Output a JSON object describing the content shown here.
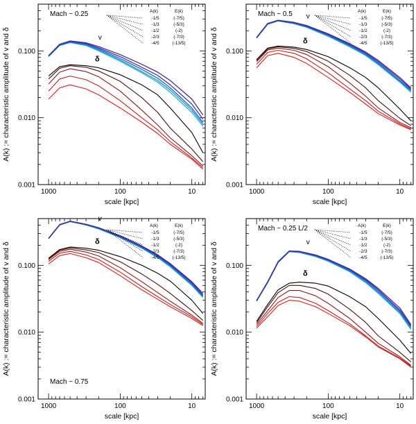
{
  "figure": {
    "ylabel": "A(k) := characteristic amplitude of v and δ",
    "xlabel": "scale [kpc]",
    "legend_header": [
      "A(k)",
      "E(k)"
    ],
    "legend_rows": [
      [
        "-1/5",
        "(-7/5)"
      ],
      [
        "-1/3",
        "(-5/3)"
      ],
      [
        "-1/2",
        "(-2)"
      ],
      [
        "-2/3",
        "(-7/3)"
      ],
      [
        "-4/5",
        "(-13/5)"
      ]
    ],
    "colors": {
      "v_series": [
        "#1fb3e0",
        "#1a8fd6",
        "#2b5fc4",
        "#3a3aa8",
        "#4b2a8a"
      ],
      "delta_series": [
        "#e11b1b",
        "#c01f1f",
        "#8a1a1a",
        "#4a1010",
        "#000000"
      ]
    }
  },
  "chart_data": [
    {
      "type": "line",
      "panel": "top-left",
      "annotation": "Mach ~ 0.25",
      "annotation_position": "top-left",
      "xscale": "log",
      "xreversed": true,
      "yscale": "log",
      "xlim": [
        1400,
        6.5
      ],
      "ylim": [
        0.001,
        0.5
      ],
      "xticks": [
        1000,
        100,
        10
      ],
      "yticks": [
        0.001,
        0.01,
        0.1
      ],
      "x": [
        1000,
        700,
        500,
        300,
        200,
        100,
        50,
        30,
        20,
        10,
        7
      ],
      "series_labels": {
        "v": "v",
        "delta": "δ"
      },
      "series": [
        {
          "name": "v (A=-1/5)",
          "values": [
            0.082,
            0.12,
            0.133,
            0.12,
            0.1,
            0.07,
            0.047,
            0.034,
            0.024,
            0.012,
            0.0075
          ]
        },
        {
          "name": "v (A=-1/3)",
          "values": [
            0.083,
            0.122,
            0.135,
            0.123,
            0.103,
            0.073,
            0.049,
            0.036,
            0.026,
            0.013,
            0.008
          ]
        },
        {
          "name": "v (A=-1/2)",
          "values": [
            0.083,
            0.123,
            0.137,
            0.126,
            0.107,
            0.077,
            0.053,
            0.039,
            0.028,
            0.014,
            0.0085
          ]
        },
        {
          "name": "v (A=-2/3)",
          "values": [
            0.084,
            0.125,
            0.139,
            0.129,
            0.111,
            0.082,
            0.057,
            0.043,
            0.031,
            0.016,
            0.0095
          ]
        },
        {
          "name": "v (A=-4/5)",
          "values": [
            0.085,
            0.126,
            0.141,
            0.132,
            0.116,
            0.088,
            0.063,
            0.048,
            0.036,
            0.019,
            0.011
          ]
        },
        {
          "name": "δ (A=-1/5)",
          "values": [
            0.019,
            0.028,
            0.031,
            0.027,
            0.022,
            0.014,
            0.0086,
            0.0058,
            0.004,
            0.0024,
            0.0017
          ]
        },
        {
          "name": "δ (A=-1/3)",
          "values": [
            0.025,
            0.038,
            0.042,
            0.037,
            0.03,
            0.018,
            0.01,
            0.0066,
            0.0044,
            0.0025,
            0.0018
          ]
        },
        {
          "name": "δ (A=-1/2)",
          "values": [
            0.032,
            0.048,
            0.054,
            0.049,
            0.041,
            0.025,
            0.013,
            0.0078,
            0.005,
            0.0027,
            0.0019
          ]
        },
        {
          "name": "δ (A=-2/3)",
          "values": [
            0.038,
            0.055,
            0.06,
            0.057,
            0.05,
            0.035,
            0.02,
            0.012,
            0.007,
            0.0034,
            0.0022
          ]
        },
        {
          "name": "δ (A=-4/5)",
          "values": [
            0.042,
            0.058,
            0.062,
            0.06,
            0.056,
            0.044,
            0.031,
            0.022,
            0.014,
            0.006,
            0.003
          ]
        }
      ]
    },
    {
      "type": "line",
      "panel": "top-right",
      "annotation": "Mach ~ 0.5",
      "annotation_position": "top-left",
      "xscale": "log",
      "xreversed": true,
      "yscale": "log",
      "xlim": [
        1400,
        6.5
      ],
      "ylim": [
        0.001,
        0.5
      ],
      "xticks": [
        1000,
        100,
        10
      ],
      "yticks": [
        0.001,
        0.01,
        0.1
      ],
      "x": [
        1000,
        700,
        500,
        300,
        200,
        100,
        50,
        30,
        20,
        10,
        7
      ],
      "series_labels": {
        "v": "v",
        "delta": "δ"
      },
      "series": [
        {
          "name": "v (A=-1/5)",
          "values": [
            0.155,
            0.25,
            0.28,
            0.255,
            0.225,
            0.165,
            0.115,
            0.085,
            0.062,
            0.034,
            0.024
          ]
        },
        {
          "name": "v (A=-1/3)",
          "values": [
            0.156,
            0.252,
            0.282,
            0.258,
            0.228,
            0.168,
            0.118,
            0.087,
            0.064,
            0.035,
            0.025
          ]
        },
        {
          "name": "v (A=-1/2)",
          "values": [
            0.157,
            0.254,
            0.284,
            0.261,
            0.232,
            0.172,
            0.121,
            0.09,
            0.066,
            0.036,
            0.026
          ]
        },
        {
          "name": "v (A=-2/3)",
          "values": [
            0.158,
            0.256,
            0.286,
            0.264,
            0.236,
            0.176,
            0.124,
            0.093,
            0.069,
            0.038,
            0.027
          ]
        },
        {
          "name": "v (A=-4/5)",
          "values": [
            0.159,
            0.258,
            0.288,
            0.267,
            0.24,
            0.18,
            0.128,
            0.096,
            0.072,
            0.04,
            0.028
          ]
        },
        {
          "name": "δ (A=-1/5)",
          "values": [
            0.056,
            0.085,
            0.092,
            0.08,
            0.065,
            0.04,
            0.024,
            0.016,
            0.0115,
            0.0078,
            0.0066
          ]
        },
        {
          "name": "δ (A=-1/3)",
          "values": [
            0.063,
            0.095,
            0.102,
            0.092,
            0.076,
            0.047,
            0.027,
            0.018,
            0.0125,
            0.0081,
            0.0068
          ]
        },
        {
          "name": "δ (A=-1/2)",
          "values": [
            0.069,
            0.103,
            0.11,
            0.102,
            0.088,
            0.058,
            0.033,
            0.021,
            0.014,
            0.0085,
            0.0071
          ]
        },
        {
          "name": "δ (A=-2/3)",
          "values": [
            0.072,
            0.107,
            0.115,
            0.109,
            0.098,
            0.07,
            0.043,
            0.028,
            0.018,
            0.0098,
            0.0076
          ]
        },
        {
          "name": "δ (A=-4/5)",
          "values": [
            0.074,
            0.11,
            0.118,
            0.114,
            0.105,
            0.082,
            0.056,
            0.04,
            0.028,
            0.0135,
            0.009
          ]
        }
      ]
    },
    {
      "type": "line",
      "panel": "bottom-left",
      "annotation": "Mach ~ 0.75",
      "annotation_position": "bottom-left",
      "xscale": "log",
      "xreversed": true,
      "yscale": "log",
      "xlim": [
        1400,
        6.5
      ],
      "ylim": [
        0.001,
        0.5
      ],
      "xticks": [
        1000,
        100,
        10
      ],
      "yticks": [
        0.001,
        0.01,
        0.1
      ],
      "x": [
        1000,
        700,
        500,
        300,
        200,
        100,
        50,
        30,
        20,
        10,
        7
      ],
      "series_labels": {
        "v": "v",
        "delta": "δ"
      },
      "series": [
        {
          "name": "v (A=-1/5)",
          "values": [
            0.25,
            0.4,
            0.45,
            0.4,
            0.35,
            0.26,
            0.18,
            0.13,
            0.095,
            0.05,
            0.033
          ]
        },
        {
          "name": "v (A=-1/3)",
          "values": [
            0.251,
            0.402,
            0.452,
            0.403,
            0.354,
            0.264,
            0.183,
            0.133,
            0.097,
            0.051,
            0.034
          ]
        },
        {
          "name": "v (A=-1/2)",
          "values": [
            0.252,
            0.404,
            0.454,
            0.406,
            0.358,
            0.268,
            0.187,
            0.136,
            0.1,
            0.053,
            0.035
          ]
        },
        {
          "name": "v (A=-2/3)",
          "values": [
            0.253,
            0.406,
            0.456,
            0.409,
            0.362,
            0.272,
            0.191,
            0.14,
            0.103,
            0.055,
            0.036
          ]
        },
        {
          "name": "v (A=-4/5)",
          "values": [
            0.254,
            0.408,
            0.458,
            0.412,
            0.366,
            0.276,
            0.195,
            0.144,
            0.106,
            0.057,
            0.038
          ]
        },
        {
          "name": "δ (A=-1/5)",
          "values": [
            0.105,
            0.14,
            0.15,
            0.13,
            0.11,
            0.07,
            0.043,
            0.031,
            0.024,
            0.016,
            0.0125
          ]
        },
        {
          "name": "δ (A=-1/3)",
          "values": [
            0.115,
            0.152,
            0.162,
            0.143,
            0.122,
            0.079,
            0.048,
            0.034,
            0.026,
            0.017,
            0.013
          ]
        },
        {
          "name": "δ (A=-1/2)",
          "values": [
            0.122,
            0.162,
            0.174,
            0.158,
            0.138,
            0.092,
            0.057,
            0.039,
            0.029,
            0.018,
            0.0135
          ]
        },
        {
          "name": "δ (A=-2/3)",
          "values": [
            0.126,
            0.168,
            0.182,
            0.17,
            0.155,
            0.113,
            0.074,
            0.052,
            0.038,
            0.021,
            0.015
          ]
        },
        {
          "name": "δ (A=-4/5)",
          "values": [
            0.128,
            0.172,
            0.188,
            0.18,
            0.168,
            0.135,
            0.1,
            0.076,
            0.058,
            0.03,
            0.019
          ]
        }
      ]
    },
    {
      "type": "line",
      "panel": "bottom-right",
      "annotation": "Mach ~ 0.25 L/2",
      "annotation_position": "top-left",
      "xscale": "log",
      "xreversed": true,
      "yscale": "log",
      "xlim": [
        1400,
        6.5
      ],
      "ylim": [
        0.001,
        0.5
      ],
      "xticks": [
        1000,
        100,
        10
      ],
      "yticks": [
        0.001,
        0.01,
        0.1
      ],
      "x": [
        1000,
        700,
        500,
        350,
        250,
        150,
        100,
        50,
        30,
        20,
        10,
        7
      ],
      "series_labels": {
        "v": "v",
        "delta": "δ"
      },
      "series": [
        {
          "name": "v (A=-1/5)",
          "values": [
            0.029,
            0.055,
            0.11,
            0.16,
            0.155,
            0.135,
            0.115,
            0.08,
            0.055,
            0.038,
            0.019,
            0.011
          ]
        },
        {
          "name": "v (A=-1/3)",
          "values": [
            0.0292,
            0.0555,
            0.111,
            0.161,
            0.157,
            0.137,
            0.117,
            0.082,
            0.057,
            0.039,
            0.0195,
            0.0115
          ]
        },
        {
          "name": "v (A=-1/2)",
          "values": [
            0.0294,
            0.056,
            0.112,
            0.162,
            0.158,
            0.139,
            0.119,
            0.084,
            0.059,
            0.041,
            0.0205,
            0.012
          ]
        },
        {
          "name": "v (A=-2/3)",
          "values": [
            0.0296,
            0.0565,
            0.113,
            0.163,
            0.16,
            0.141,
            0.121,
            0.086,
            0.061,
            0.043,
            0.0215,
            0.0125
          ]
        },
        {
          "name": "v (A=-4/5)",
          "values": [
            0.0298,
            0.057,
            0.114,
            0.164,
            0.162,
            0.143,
            0.123,
            0.088,
            0.063,
            0.045,
            0.023,
            0.013
          ]
        },
        {
          "name": "δ (A=-1/5)",
          "values": [
            0.0115,
            0.017,
            0.025,
            0.03,
            0.029,
            0.024,
            0.019,
            0.0125,
            0.0085,
            0.006,
            0.004,
            0.003
          ]
        },
        {
          "name": "δ (A=-1/3)",
          "values": [
            0.0122,
            0.019,
            0.028,
            0.034,
            0.033,
            0.027,
            0.021,
            0.0133,
            0.0088,
            0.0062,
            0.0041,
            0.0031
          ]
        },
        {
          "name": "δ (A=-1/2)",
          "values": [
            0.013,
            0.021,
            0.033,
            0.042,
            0.042,
            0.035,
            0.027,
            0.016,
            0.01,
            0.0068,
            0.0043,
            0.0032
          ]
        },
        {
          "name": "δ (A=-2/3)",
          "values": [
            0.0138,
            0.024,
            0.039,
            0.05,
            0.05,
            0.045,
            0.037,
            0.022,
            0.014,
            0.0088,
            0.005,
            0.0036
          ]
        },
        {
          "name": "δ (A=-4/5)",
          "values": [
            0.0145,
            0.026,
            0.043,
            0.054,
            0.056,
            0.054,
            0.049,
            0.034,
            0.024,
            0.016,
            0.0076,
            0.0048
          ]
        }
      ]
    }
  ]
}
